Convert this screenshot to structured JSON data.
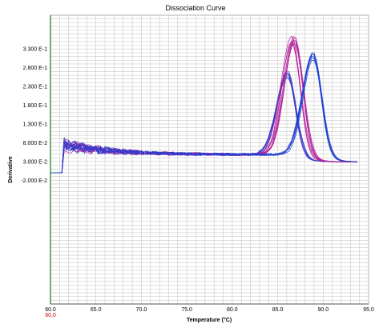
{
  "chart_data": {
    "type": "line",
    "title": "Dissociation Curve",
    "xlabel": "Temperature (°C)",
    "ylabel": "Derivative",
    "xlim": [
      60.0,
      95.0
    ],
    "ylim": [
      -0.35,
      0.42
    ],
    "x_ticks": [
      60.0,
      65.0,
      70.0,
      75.0,
      80.0,
      85.0,
      90.0,
      95.0
    ],
    "x_tick_labels": [
      "60.0",
      "65.0",
      "70.0",
      "75.0",
      "80.0",
      "85.0",
      "90.0",
      "95.0"
    ],
    "x_start_marker": "60.0",
    "y_ticks": [
      0.33,
      0.28,
      0.23,
      0.18,
      0.13,
      0.08,
      0.03,
      -0.02
    ],
    "y_tick_labels": [
      "3.300 E-1",
      "2.800 E-1",
      "2.300 E-1",
      "1.800 E-1",
      "1.300 E-1",
      "8.000 E-2",
      "3.000 E-2",
      "-2.000 E-2"
    ],
    "grid": true,
    "legend": "none",
    "peak_groups": [
      {
        "color": "#3b3bc8",
        "peak_temperature": 86.0,
        "peak_value": 0.26,
        "count": 6
      },
      {
        "color": "#b0209a",
        "peak_temperature": 86.7,
        "peak_value": 0.355,
        "count": 8
      },
      {
        "color": "#1f3fd0",
        "peak_temperature": 88.8,
        "peak_value": 0.31,
        "count": 6
      }
    ],
    "baseline": {
      "start_temperature": 61.4,
      "plateau_value": 0.048,
      "high_value": 0.078,
      "end_value": 0.028
    },
    "colors": {
      "axis_left": "#3a8a3a",
      "grid": "#c8c8c8",
      "start_marker": "#cc0000"
    }
  }
}
